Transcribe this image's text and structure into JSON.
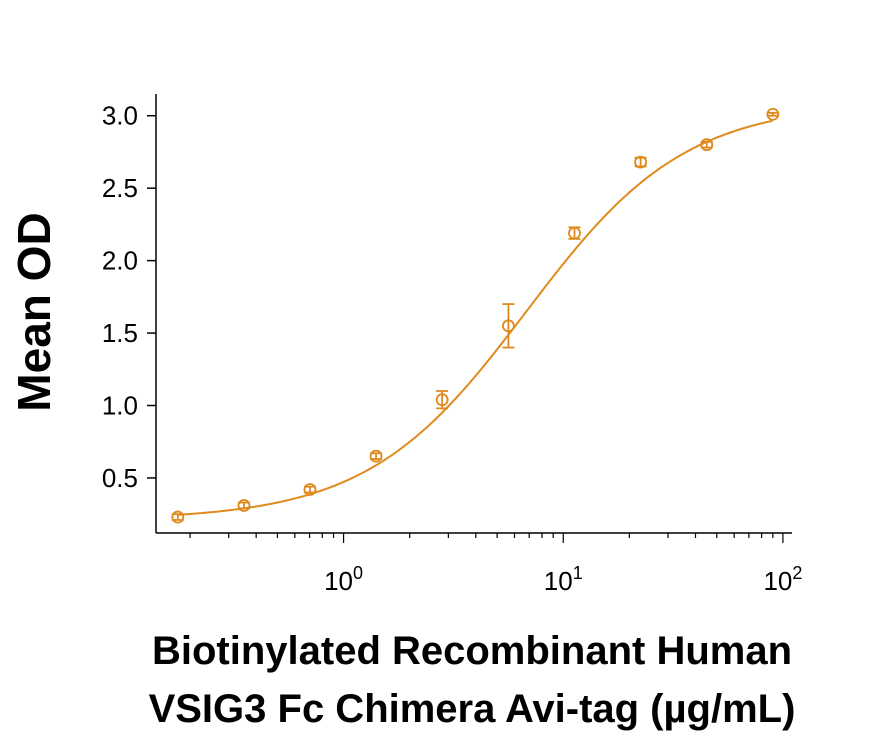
{
  "chart_data": {
    "type": "scatter",
    "xscale": "log",
    "xlim": [
      0.14,
      110
    ],
    "ylim": [
      0.12,
      3.15
    ],
    "xlabel_lines": [
      "Biotinylated Recombinant Human",
      "VSIG3 Fc Chimera Avi-tag (µg/mL)"
    ],
    "ylabel": "Mean OD",
    "x_ticks": [
      {
        "value": 1,
        "base": "10",
        "exp": "0"
      },
      {
        "value": 10,
        "base": "10",
        "exp": "1"
      },
      {
        "value": 100,
        "base": "10",
        "exp": "2"
      }
    ],
    "y_ticks": [
      {
        "value": 0.5,
        "label": "0.5"
      },
      {
        "value": 1.0,
        "label": "1.0"
      },
      {
        "value": 1.5,
        "label": "1.5"
      },
      {
        "value": 2.0,
        "label": "2.0"
      },
      {
        "value": 2.5,
        "label": "2.5"
      },
      {
        "value": 3.0,
        "label": "3.0"
      }
    ],
    "series": [
      {
        "color": "#E08A1E",
        "points": [
          {
            "x": 0.176,
            "y": 0.23,
            "err": 0.02
          },
          {
            "x": 0.352,
            "y": 0.31,
            "err": 0.02
          },
          {
            "x": 0.703,
            "y": 0.42,
            "err": 0.02
          },
          {
            "x": 1.406,
            "y": 0.65,
            "err": 0.02
          },
          {
            "x": 2.81,
            "y": 1.04,
            "err": 0.06
          },
          {
            "x": 5.63,
            "y": 1.55,
            "err": 0.15
          },
          {
            "x": 11.25,
            "y": 2.19,
            "err": 0.04
          },
          {
            "x": 22.5,
            "y": 2.68,
            "err": 0.03
          },
          {
            "x": 45,
            "y": 2.8,
            "err": 0.02
          },
          {
            "x": 90,
            "y": 3.01,
            "err": 0.01
          }
        ],
        "fit": {
          "model": "4PL",
          "bottom": 0.21,
          "top": 3.09,
          "ec50": 6.8,
          "hill": 1.2
        }
      }
    ],
    "grid": false,
    "legend": "none"
  }
}
